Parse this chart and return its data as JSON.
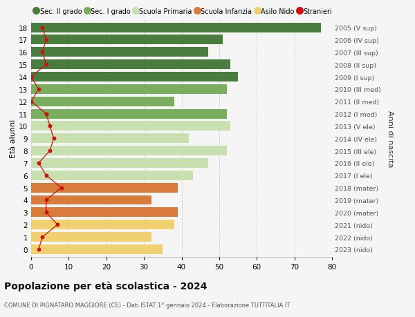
{
  "ages": [
    18,
    17,
    16,
    15,
    14,
    13,
    12,
    11,
    10,
    9,
    8,
    7,
    6,
    5,
    4,
    3,
    2,
    1,
    0
  ],
  "bar_values": [
    77,
    51,
    47,
    53,
    55,
    52,
    38,
    52,
    53,
    42,
    52,
    47,
    43,
    39,
    32,
    39,
    38,
    32,
    35
  ],
  "bar_colors": [
    "#4a7c3f",
    "#4a7c3f",
    "#4a7c3f",
    "#4a7c3f",
    "#4a7c3f",
    "#7aad5e",
    "#7aad5e",
    "#7aad5e",
    "#c8e0b0",
    "#c8e0b0",
    "#c8e0b0",
    "#c8e0b0",
    "#c8e0b0",
    "#d97b3a",
    "#d97b3a",
    "#d97b3a",
    "#f0d070",
    "#f0d070",
    "#f0d070"
  ],
  "stranieri_values": [
    3,
    4,
    3,
    4,
    0,
    2,
    0,
    4,
    5,
    6,
    5,
    2,
    4,
    8,
    4,
    4,
    7,
    3,
    2
  ],
  "right_labels": [
    "2005 (V sup)",
    "2006 (IV sup)",
    "2007 (III sup)",
    "2008 (II sup)",
    "2009 (I sup)",
    "2010 (III med)",
    "2011 (II med)",
    "2012 (I med)",
    "2013 (V ele)",
    "2014 (IV ele)",
    "2015 (III ele)",
    "2016 (II ele)",
    "2017 (I ele)",
    "2018 (mater)",
    "2019 (mater)",
    "2020 (mater)",
    "2021 (nido)",
    "2022 (nido)",
    "2023 (nido)"
  ],
  "ylabel_left": "Età alunni",
  "ylabel_right": "Anni di nascita",
  "title_main": "Popolazione per età scolastica - 2024",
  "title_sub": "COMUNE DI PIGNATARO MAGGIORE (CE) - Dati ISTAT 1° gennaio 2024 - Elaborazione TUTTITALIA.IT",
  "xlim": [
    0,
    80
  ],
  "xticks": [
    0,
    10,
    20,
    30,
    40,
    50,
    60,
    70,
    80
  ],
  "legend_labels": [
    "Sec. II grado",
    "Sec. I grado",
    "Scuola Primaria",
    "Scuola Infanzia",
    "Asilo Nido",
    "Stranieri"
  ],
  "legend_colors": [
    "#4a7c3f",
    "#7aad5e",
    "#c8e0b0",
    "#d97b3a",
    "#f0d070",
    "#cc1111"
  ],
  "bg_color": "#f5f5f5",
  "grid_color": "#cccccc",
  "stranieri_line_color": "#cc1111",
  "bar_height": 0.78,
  "figsize": [
    6.0,
    4.6
  ],
  "dpi": 100
}
